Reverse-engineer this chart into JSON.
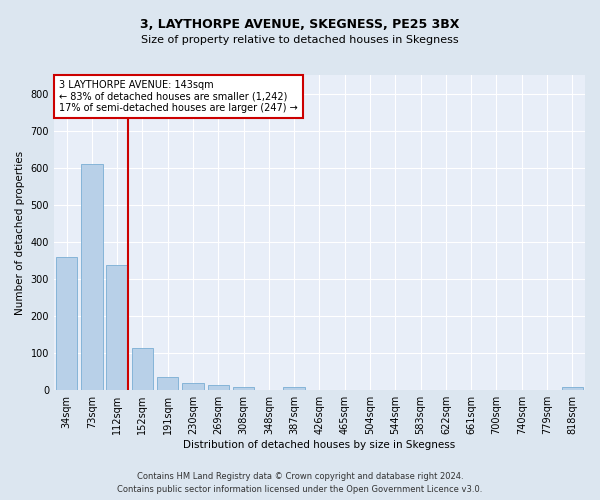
{
  "title": "3, LAYTHORPE AVENUE, SKEGNESS, PE25 3BX",
  "subtitle": "Size of property relative to detached houses in Skegness",
  "xlabel": "Distribution of detached houses by size in Skegness",
  "ylabel": "Number of detached properties",
  "bar_labels": [
    "34sqm",
    "73sqm",
    "112sqm",
    "152sqm",
    "191sqm",
    "230sqm",
    "269sqm",
    "308sqm",
    "348sqm",
    "387sqm",
    "426sqm",
    "465sqm",
    "504sqm",
    "544sqm",
    "583sqm",
    "622sqm",
    "661sqm",
    "700sqm",
    "740sqm",
    "779sqm",
    "818sqm"
  ],
  "bar_values": [
    358,
    611,
    338,
    115,
    36,
    20,
    15,
    10,
    0,
    10,
    0,
    0,
    0,
    0,
    0,
    0,
    0,
    0,
    0,
    0,
    8
  ],
  "bar_color": "#b8d0e8",
  "bar_edgecolor": "#7aaed4",
  "vline_index": 2,
  "vline_color": "#cc0000",
  "annotation_line1": "3 LAYTHORPE AVENUE: 143sqm",
  "annotation_line2": "← 83% of detached houses are smaller (1,242)",
  "annotation_line3": "17% of semi-detached houses are larger (247) →",
  "annotation_box_edgecolor": "#cc0000",
  "ylim": [
    0,
    850
  ],
  "yticks": [
    0,
    100,
    200,
    300,
    400,
    500,
    600,
    700,
    800
  ],
  "footnote1": "Contains HM Land Registry data © Crown copyright and database right 2024.",
  "footnote2": "Contains public sector information licensed under the Open Government Licence v3.0.",
  "bg_color": "#dce6f0",
  "plot_bg_color": "#e8eef8",
  "grid_color": "#ffffff",
  "title_fontsize": 9,
  "subtitle_fontsize": 8,
  "axis_label_fontsize": 7.5,
  "tick_fontsize": 7,
  "annotation_fontsize": 7,
  "footnote_fontsize": 6
}
